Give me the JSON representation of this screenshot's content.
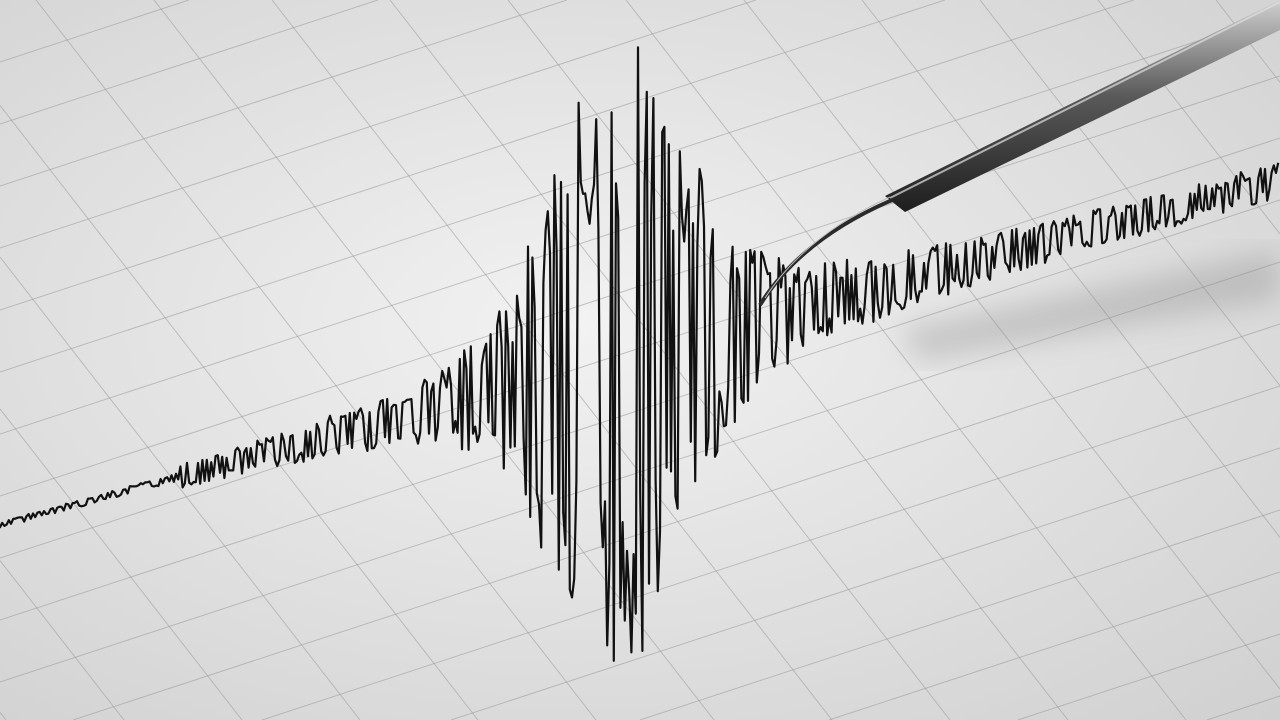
{
  "scene": {
    "paper_color": "#ececec",
    "grid_color": "#9a9a9a",
    "trace_color": "#111111",
    "pen_color": "#3a3a3a",
    "pen_highlight": "#d0d0d0"
  }
}
